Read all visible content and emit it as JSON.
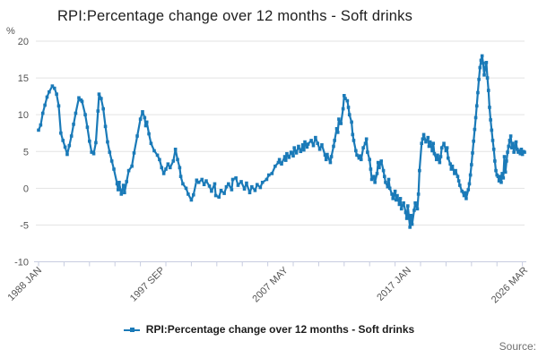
{
  "title": "RPI:Percentage change over 12 months - Soft drinks",
  "y_axis": {
    "unit_label": "%",
    "min": -10,
    "max": 20,
    "tick_step": 5,
    "tick_labels": [
      "20",
      "15",
      "10",
      "5",
      "0",
      "-5",
      "-10"
    ]
  },
  "x_axis": {
    "total_months": 458,
    "minor_tick_every_months": 24,
    "labels": [
      {
        "month": 0,
        "text": "1988 JAN"
      },
      {
        "month": 116,
        "text": "1997 SEP"
      },
      {
        "month": 232,
        "text": "2007 MAY"
      },
      {
        "month": 348,
        "text": "2017 JAN"
      },
      {
        "month": 458,
        "text": "2026 MAR"
      }
    ]
  },
  "legend": {
    "label": "RPI:Percentage change over 12 months - Soft drinks"
  },
  "source_label": "Source:",
  "colors": {
    "line": "#1a7ab8",
    "grid": "#e3e3e3",
    "axis": "#c7cce0",
    "tick_text": "#555555",
    "title_text": "#202020"
  },
  "chart_data": {
    "type": "line",
    "title": "RPI:Percentage change over 12 months - Soft drinks",
    "ylabel": "%",
    "ylim": [
      -10,
      20
    ],
    "y_tick_step": 5,
    "grid": "horizontal",
    "legend_position": "bottom",
    "x_unit": "months_since_1988_JAN",
    "x_range": [
      "1988 JAN",
      "2026 MAR"
    ],
    "total_months": 458,
    "series": [
      {
        "name": "RPI:Percentage change over 12 months - Soft drinks",
        "marker": "square",
        "points": [
          [
            0,
            7.9
          ],
          [
            2,
            8.6
          ],
          [
            4,
            10.2
          ],
          [
            6,
            11.3
          ],
          [
            8,
            12.4
          ],
          [
            10,
            13.1
          ],
          [
            13,
            13.9
          ],
          [
            15,
            13.6
          ],
          [
            17,
            12.8
          ],
          [
            19,
            11.2
          ],
          [
            21,
            7.5
          ],
          [
            23,
            6.5
          ],
          [
            25,
            5.6
          ],
          [
            27,
            4.6
          ],
          [
            29,
            5.8
          ],
          [
            31,
            7.1
          ],
          [
            33,
            8.7
          ],
          [
            35,
            10.2
          ],
          [
            38,
            12.3
          ],
          [
            40,
            12.0
          ],
          [
            41,
            11.8
          ],
          [
            44,
            10.0
          ],
          [
            46,
            8.3
          ],
          [
            48,
            6.4
          ],
          [
            50,
            4.9
          ],
          [
            52,
            4.7
          ],
          [
            54,
            6.2
          ],
          [
            56,
            10.5
          ],
          [
            57,
            12.8
          ],
          [
            59,
            12.2
          ],
          [
            61,
            10.8
          ],
          [
            63,
            8.4
          ],
          [
            65,
            6.3
          ],
          [
            67,
            4.9
          ],
          [
            69,
            3.7
          ],
          [
            71,
            2.6
          ],
          [
            74,
            0.6
          ],
          [
            75,
            -0.2
          ],
          [
            76,
            0.8
          ],
          [
            78,
            -0.8
          ],
          [
            80,
            0.4
          ],
          [
            81,
            -0.6
          ],
          [
            83,
            0.9
          ],
          [
            85,
            2.4
          ],
          [
            88,
            3.0
          ],
          [
            90,
            4.8
          ],
          [
            93,
            7.1
          ],
          [
            96,
            9.4
          ],
          [
            98,
            10.4
          ],
          [
            100,
            9.6
          ],
          [
            101,
            8.5
          ],
          [
            102,
            9.0
          ],
          [
            104,
            7.4
          ],
          [
            106,
            6.1
          ],
          [
            109,
            5.1
          ],
          [
            112,
            4.5
          ],
          [
            114,
            3.9
          ],
          [
            116,
            2.8
          ],
          [
            118,
            2.0
          ],
          [
            120,
            2.6
          ],
          [
            122,
            3.3
          ],
          [
            124,
            2.8
          ],
          [
            127,
            3.7
          ],
          [
            129,
            5.3
          ],
          [
            131,
            3.9
          ],
          [
            133,
            2.8
          ],
          [
            134,
            1.6
          ],
          [
            136,
            0.6
          ],
          [
            139,
            0.0
          ],
          [
            141,
            -0.8
          ],
          [
            144,
            -1.6
          ],
          [
            146,
            -0.9
          ],
          [
            149,
            1.1
          ],
          [
            151,
            0.8
          ],
          [
            154,
            1.2
          ],
          [
            156,
            0.5
          ],
          [
            158,
            1.0
          ],
          [
            161,
            0.3
          ],
          [
            163,
            -0.4
          ],
          [
            166,
            0.6
          ],
          [
            167,
            -1.0
          ],
          [
            170,
            -1.2
          ],
          [
            172,
            -0.3
          ],
          [
            175,
            -0.7
          ],
          [
            177,
            0.2
          ],
          [
            179,
            0.6
          ],
          [
            182,
            -0.2
          ],
          [
            183,
            1.2
          ],
          [
            186,
            1.4
          ],
          [
            188,
            0.4
          ],
          [
            191,
            0.9
          ],
          [
            194,
            -0.1
          ],
          [
            196,
            0.7
          ],
          [
            199,
            -0.6
          ],
          [
            201,
            0.2
          ],
          [
            204,
            -0.3
          ],
          [
            206,
            0.5
          ],
          [
            209,
            0.1
          ],
          [
            211,
            0.8
          ],
          [
            215,
            1.2
          ],
          [
            217,
            1.8
          ],
          [
            220,
            2.0
          ],
          [
            223,
            3.0
          ],
          [
            226,
            3.5
          ],
          [
            227,
            3.9
          ],
          [
            229,
            3.3
          ],
          [
            232,
            4.3
          ],
          [
            233,
            3.8
          ],
          [
            234,
            4.7
          ],
          [
            236,
            4.2
          ],
          [
            238,
            4.9
          ],
          [
            240,
            4.4
          ],
          [
            241,
            5.5
          ],
          [
            243,
            4.8
          ],
          [
            245,
            5.7
          ],
          [
            247,
            5.0
          ],
          [
            249,
            5.9
          ],
          [
            250,
            5.2
          ],
          [
            251,
            6.3
          ],
          [
            253,
            5.6
          ],
          [
            254,
            6.0
          ],
          [
            257,
            6.5
          ],
          [
            259,
            5.8
          ],
          [
            261,
            6.9
          ],
          [
            263,
            6.1
          ],
          [
            265,
            5.3
          ],
          [
            267,
            5.9
          ],
          [
            270,
            4.5
          ],
          [
            271,
            3.9
          ],
          [
            272,
            4.6
          ],
          [
            275,
            3.5
          ],
          [
            276,
            4.3
          ],
          [
            278,
            5.7
          ],
          [
            279,
            6.5
          ],
          [
            281,
            8.1
          ],
          [
            282,
            7.6
          ],
          [
            283,
            9.4
          ],
          [
            285,
            8.8
          ],
          [
            287,
            10.8
          ],
          [
            288,
            12.6
          ],
          [
            289,
            12.2
          ],
          [
            291,
            11.9
          ],
          [
            292,
            11.0
          ],
          [
            293,
            10.0
          ],
          [
            295,
            9.0
          ],
          [
            296,
            7.3
          ],
          [
            297,
            6.5
          ],
          [
            299,
            5.1
          ],
          [
            300,
            4.5
          ],
          [
            302,
            4.1
          ],
          [
            303,
            4.4
          ],
          [
            304,
            3.9
          ],
          [
            306,
            5.5
          ],
          [
            308,
            6.1
          ],
          [
            309,
            6.7
          ],
          [
            310,
            4.9
          ],
          [
            312,
            3.9
          ],
          [
            313,
            2.6
          ],
          [
            314,
            1.2
          ],
          [
            316,
            1.6
          ],
          [
            317,
            0.8
          ],
          [
            319,
            2.0
          ],
          [
            320,
            3.5
          ],
          [
            321,
            2.8
          ],
          [
            323,
            3.7
          ],
          [
            325,
            2.4
          ],
          [
            326,
            1.6
          ],
          [
            327,
            0.8
          ],
          [
            329,
            0.2
          ],
          [
            330,
            1.2
          ],
          [
            331,
            0.0
          ],
          [
            333,
            -0.8
          ],
          [
            334,
            -1.4
          ],
          [
            336,
            -0.4
          ],
          [
            337,
            -1.6
          ],
          [
            338,
            -1.0
          ],
          [
            340,
            -2.2
          ],
          [
            341,
            -1.4
          ],
          [
            342,
            -2.8
          ],
          [
            344,
            -2.0
          ],
          [
            346,
            -3.3
          ],
          [
            347,
            -4.1
          ],
          [
            348,
            -2.4
          ],
          [
            350,
            -5.3
          ],
          [
            351,
            -3.7
          ],
          [
            352,
            -4.9
          ],
          [
            354,
            -3.0
          ],
          [
            355,
            -2.0
          ],
          [
            357,
            -2.8
          ],
          [
            358,
            -0.8
          ],
          [
            359,
            2.4
          ],
          [
            361,
            6.1
          ],
          [
            362,
            6.7
          ],
          [
            363,
            7.3
          ],
          [
            365,
            6.3
          ],
          [
            367,
            6.9
          ],
          [
            368,
            5.7
          ],
          [
            369,
            6.3
          ],
          [
            371,
            5.1
          ],
          [
            372,
            6.1
          ],
          [
            373,
            4.7
          ],
          [
            375,
            3.9
          ],
          [
            376,
            4.5
          ],
          [
            378,
            3.5
          ],
          [
            379,
            4.3
          ],
          [
            380,
            5.5
          ],
          [
            382,
            6.1
          ],
          [
            384,
            5.1
          ],
          [
            385,
            5.5
          ],
          [
            386,
            4.1
          ],
          [
            388,
            3.3
          ],
          [
            389,
            2.6
          ],
          [
            390,
            3.0
          ],
          [
            392,
            2.0
          ],
          [
            393,
            2.4
          ],
          [
            395,
            1.6
          ],
          [
            396,
            1.0
          ],
          [
            397,
            0.4
          ],
          [
            399,
            -0.4
          ],
          [
            401,
            -1.0
          ],
          [
            402,
            -0.6
          ],
          [
            403,
            -1.4
          ],
          [
            405,
            -0.2
          ],
          [
            406,
            0.6
          ],
          [
            407,
            1.8
          ],
          [
            408,
            3.2
          ],
          [
            409,
            4.8
          ],
          [
            410,
            6.4
          ],
          [
            411,
            8.0
          ],
          [
            412,
            9.6
          ],
          [
            413,
            11.2
          ],
          [
            414,
            13.0
          ],
          [
            415,
            14.8
          ],
          [
            416,
            16.4
          ],
          [
            417,
            17.4
          ],
          [
            418,
            18.0
          ],
          [
            419,
            17.0
          ],
          [
            420,
            15.4
          ],
          [
            421,
            16.4
          ],
          [
            422,
            17.1
          ],
          [
            423,
            15.0
          ],
          [
            424,
            13.3
          ],
          [
            425,
            11.0
          ],
          [
            426,
            9.3
          ],
          [
            427,
            7.9
          ],
          [
            428,
            6.5
          ],
          [
            429,
            5.3
          ],
          [
            430,
            3.7
          ],
          [
            431,
            2.4
          ],
          [
            432,
            1.8
          ],
          [
            433,
            1.6
          ],
          [
            434,
            1.0
          ],
          [
            435,
            1.6
          ],
          [
            436,
            0.8
          ],
          [
            437,
            2.0
          ],
          [
            438,
            1.4
          ],
          [
            439,
            4.3
          ],
          [
            440,
            2.2
          ],
          [
            441,
            3.7
          ],
          [
            442,
            4.9
          ],
          [
            443,
            5.7
          ],
          [
            444,
            6.5
          ],
          [
            445,
            7.1
          ],
          [
            446,
            5.5
          ],
          [
            447,
            6.1
          ],
          [
            448,
            4.9
          ],
          [
            449,
            5.7
          ],
          [
            450,
            6.3
          ],
          [
            451,
            5.3
          ],
          [
            452,
            4.9
          ],
          [
            453,
            5.1
          ],
          [
            454,
            4.7
          ],
          [
            455,
            5.3
          ],
          [
            456,
            4.6
          ],
          [
            457,
            5.0
          ],
          [
            458,
            4.9
          ]
        ]
      }
    ]
  }
}
